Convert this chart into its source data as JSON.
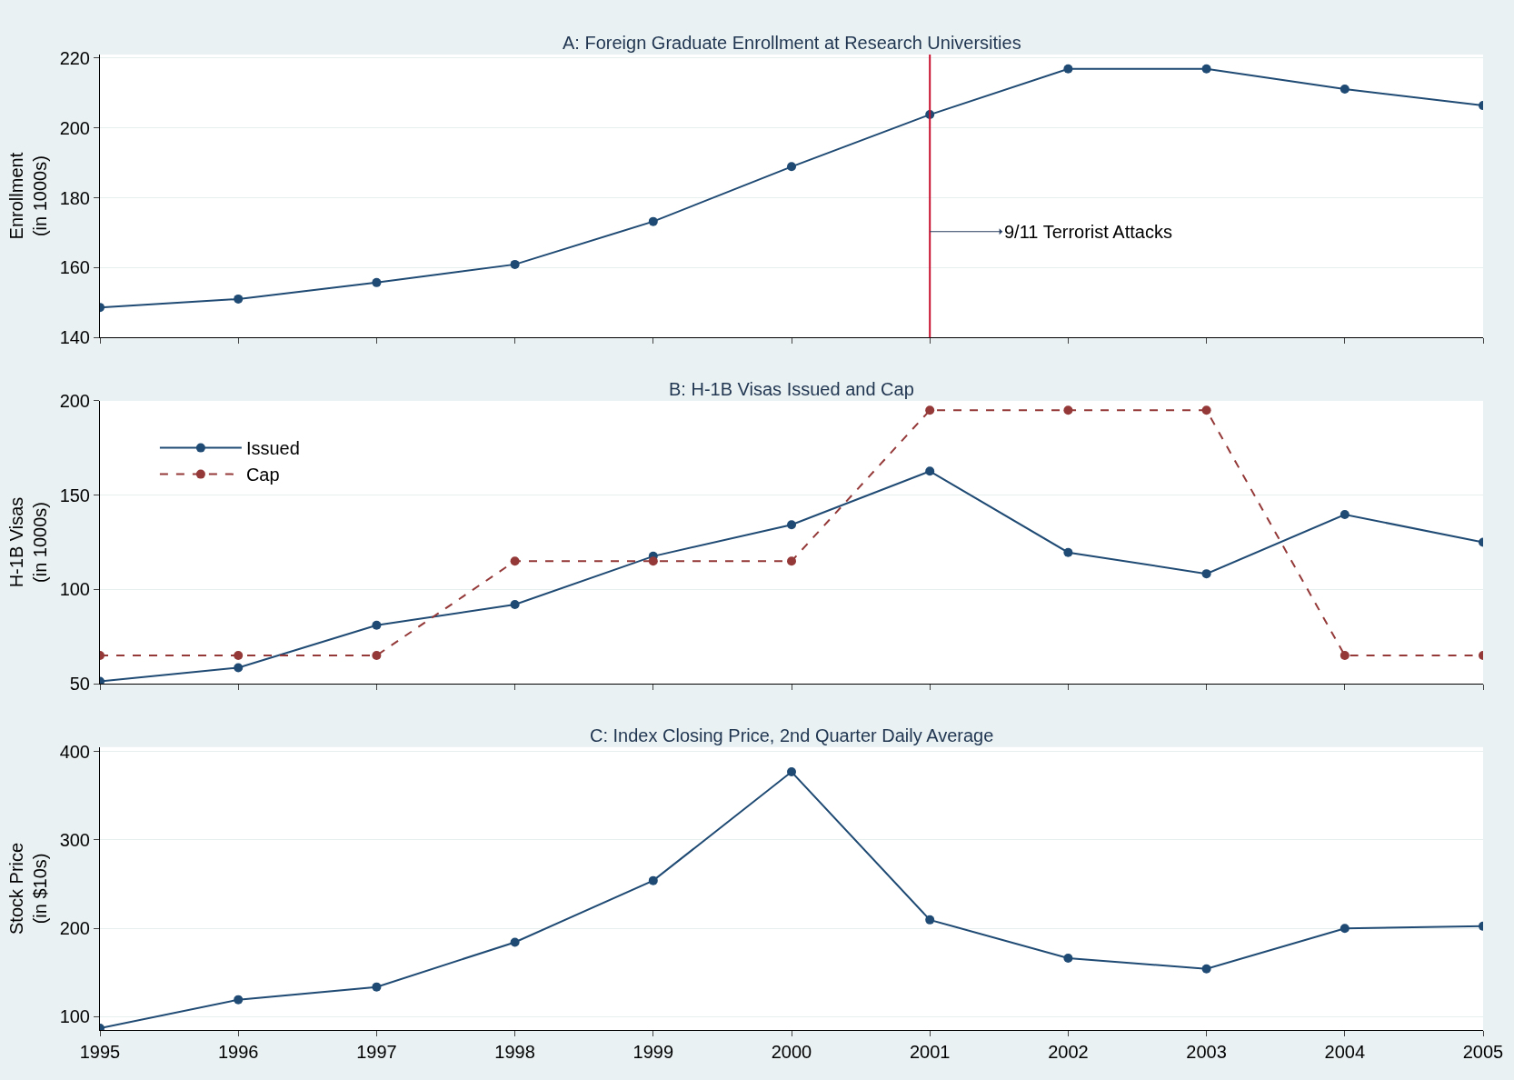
{
  "chart_data": [
    {
      "type": "line",
      "title": "A: Foreign Graduate Enrollment at Research Universities",
      "ylabel": "Enrollment\n(in 1000s)",
      "x": [
        1995,
        1996,
        1997,
        1998,
        1999,
        2000,
        2001,
        2002,
        2003,
        2004,
        2005
      ],
      "series": [
        {
          "color": "#1f4a73",
          "values": [
            148.6,
            151,
            155.7,
            160.9,
            173.2,
            188.9,
            203.8,
            216.9,
            216.9,
            211.1,
            206.4
          ]
        }
      ],
      "xlim": [
        1995,
        2005
      ],
      "xticks": [
        1995,
        1996,
        1997,
        1998,
        1999,
        2000,
        2001,
        2002,
        2003,
        2004,
        2005
      ],
      "ylim": [
        140,
        221
      ],
      "yticks": [
        140,
        160,
        180,
        200,
        220
      ],
      "ref_lines": [
        {
          "axis": "x",
          "value": 2001,
          "color": "#c8102e"
        }
      ],
      "annotations": [
        {
          "text": "9/11 Terrorist Attacks",
          "x": 2001,
          "y": 170.3
        }
      ],
      "grid": "y",
      "marker": "circle",
      "line_style": "solid",
      "tick_labels": "y",
      "legend": false
    },
    {
      "type": "line",
      "title": "B: H-1B Visas Issued and Cap",
      "ylabel": "H-1B Visas\n(in 1000s)",
      "x": [
        1995,
        1996,
        1997,
        1998,
        1999,
        2000,
        2001,
        2002,
        2003,
        2004,
        2005
      ],
      "series": [
        {
          "name": "Issued",
          "color": "#1f4a73",
          "values": [
            51.2,
            58.5,
            81,
            92,
            117.6,
            134.3,
            162.7,
            119.6,
            108.3,
            139.7,
            125
          ],
          "line_style": "solid"
        },
        {
          "name": "Cap",
          "color": "#943838",
          "values": [
            65,
            65,
            65,
            115,
            115,
            115,
            195,
            195,
            195,
            65,
            65
          ],
          "line_style": "dashed"
        }
      ],
      "xlim": [
        1995,
        2005
      ],
      "xticks": [
        1995,
        1996,
        1997,
        1998,
        1999,
        2000,
        2001,
        2002,
        2003,
        2004,
        2005
      ],
      "ylim": [
        50,
        200
      ],
      "yticks": [
        50,
        100,
        150,
        200
      ],
      "grid": "y",
      "marker": "circle",
      "tick_labels": "y",
      "legend": "top left"
    },
    {
      "type": "line",
      "title": "C: Index Closing Price, 2nd Quarter Daily Average",
      "ylabel": "Stock Price\n(in $10s)",
      "x": [
        1995,
        1996,
        1997,
        1998,
        1999,
        2000,
        2001,
        2002,
        2003,
        2004,
        2005
      ],
      "series": [
        {
          "color": "#1f4a73",
          "values": [
            87,
            119.3,
            133.7,
            184.3,
            254,
            377,
            209.6,
            166.3,
            154.2,
            200,
            202.4
          ]
        }
      ],
      "xlim": [
        1995,
        2005
      ],
      "xticks": [
        1995,
        1996,
        1997,
        1998,
        1999,
        2000,
        2001,
        2002,
        2003,
        2004,
        2005
      ],
      "ylim": [
        85,
        405
      ],
      "yticks": [
        100,
        200,
        300,
        400
      ],
      "grid": "y",
      "marker": "circle",
      "line_style": "solid",
      "legend": false
    }
  ]
}
